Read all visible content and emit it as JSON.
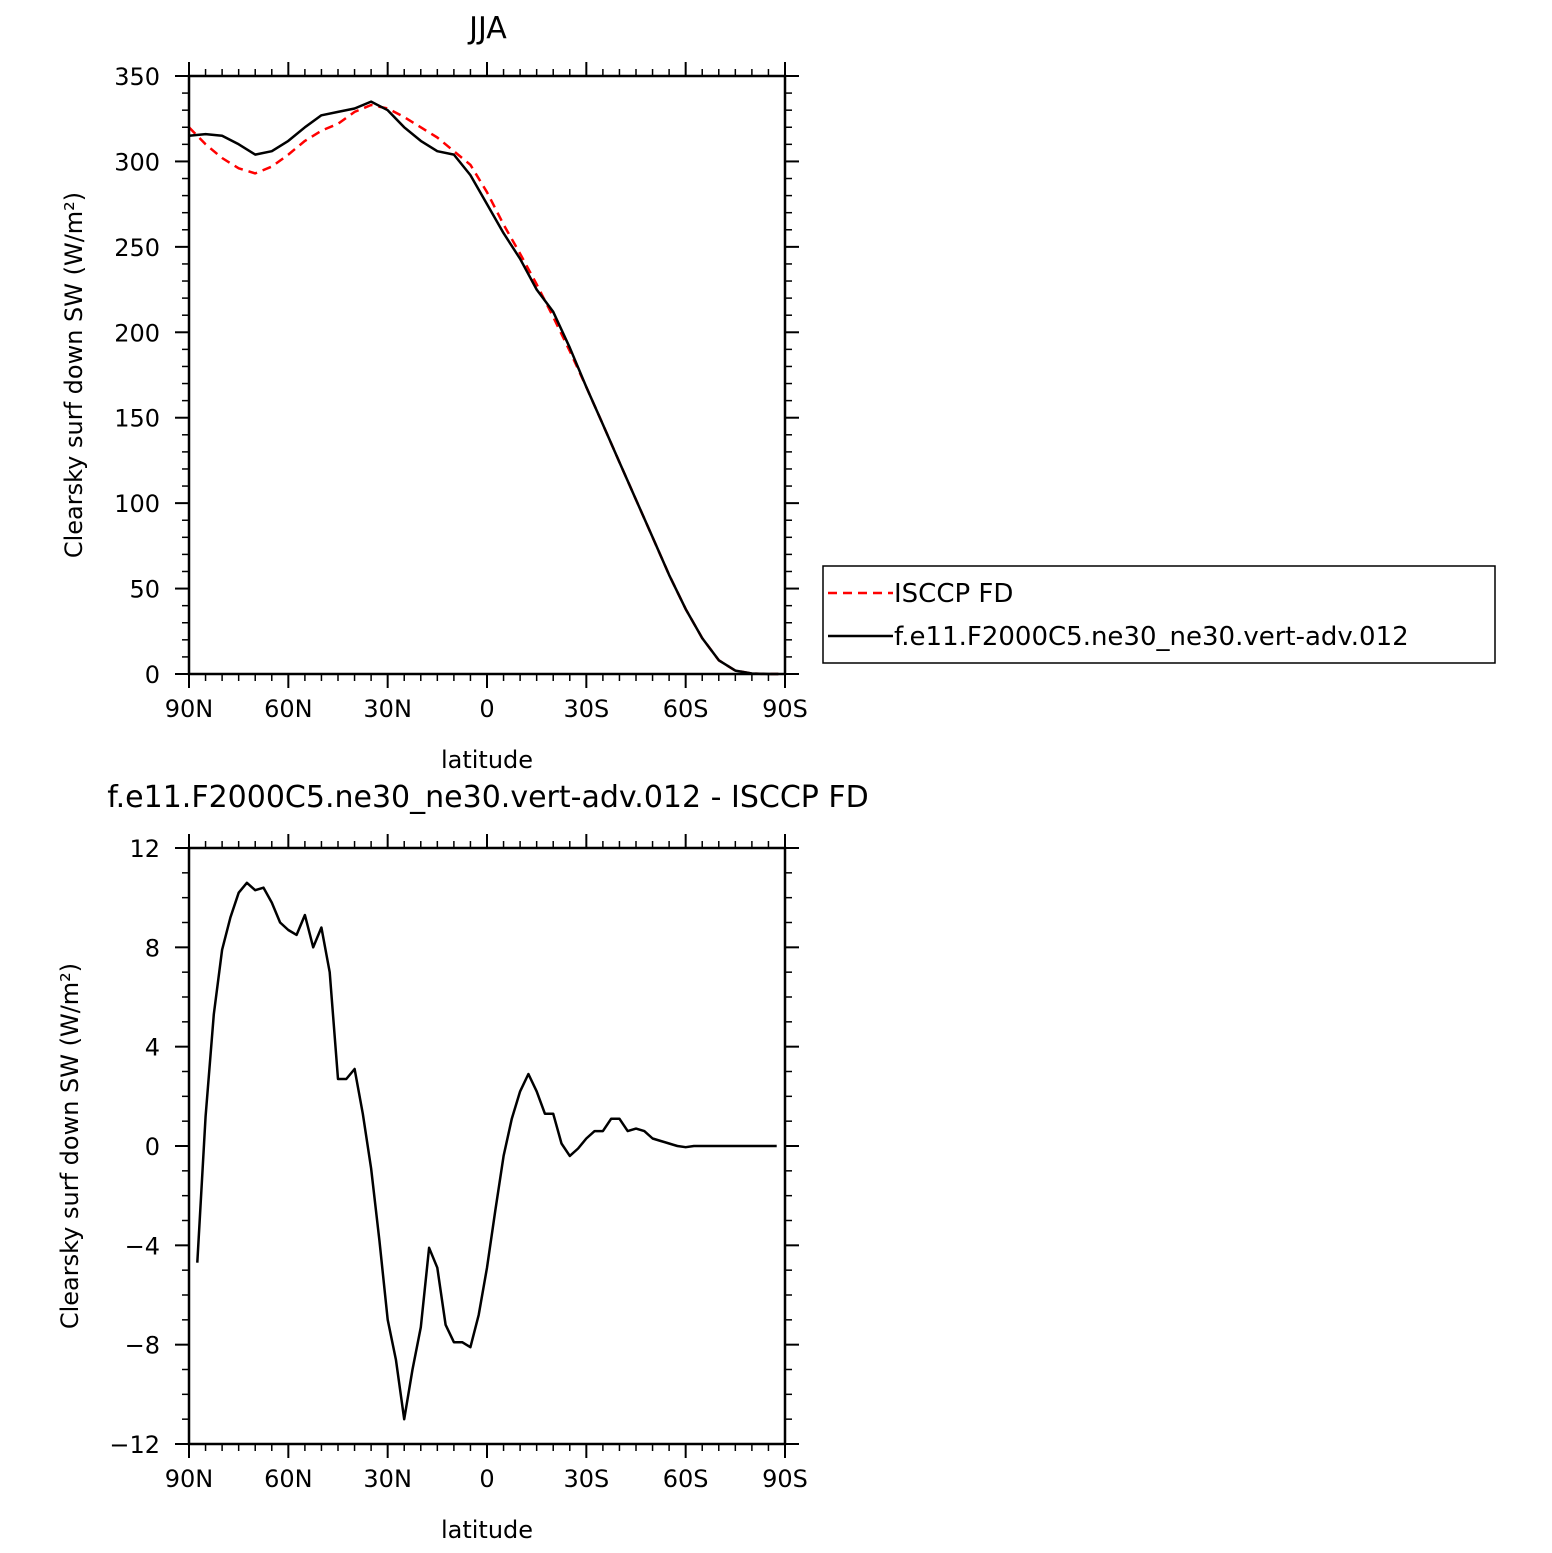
{
  "chart_data": [
    {
      "type": "line",
      "title": "JJA",
      "xlabel": "latitude",
      "ylabel": "Clearsky surf down SW (W/m²)",
      "xlim": [
        90,
        -90
      ],
      "ylim": [
        0,
        350
      ],
      "xticks": [
        90,
        60,
        30,
        0,
        -30,
        -60,
        -90
      ],
      "xtick_labels": [
        "90N",
        "60N",
        "30N",
        "0",
        "30S",
        "60S",
        "90S"
      ],
      "yticks": [
        0,
        50,
        100,
        150,
        200,
        250,
        300,
        350
      ],
      "ytick_labels": [
        "0",
        "50",
        "100",
        "150",
        "200",
        "250",
        "300",
        "350"
      ],
      "legend_position": "right",
      "series": [
        {
          "name": "ISCCP FD",
          "color": "#ff0000",
          "dash": "dashed",
          "x": [
            90,
            85,
            80,
            75,
            70,
            65,
            60,
            55,
            50,
            45,
            40,
            35,
            30,
            25,
            20,
            15,
            10,
            5,
            0,
            -5,
            -10,
            -15,
            -20,
            -25,
            -30,
            -35,
            -40,
            -45,
            -50,
            -55,
            -60,
            -65,
            -70,
            -75,
            -80,
            -85,
            -88
          ],
          "y": [
            320,
            310,
            302,
            296,
            293,
            297,
            304,
            312,
            318,
            322,
            329,
            333,
            331,
            326,
            320,
            314,
            306,
            298,
            282,
            263,
            246,
            228,
            209,
            189,
            168,
            146,
            124,
            102,
            80,
            58,
            38,
            21,
            8,
            2,
            0.3,
            0,
            0
          ]
        },
        {
          "name": "f.e11.F2000C5.ne30_ne30.vert-adv.012",
          "color": "#000000",
          "dash": "solid",
          "x": [
            90,
            85,
            80,
            75,
            70,
            65,
            60,
            55,
            50,
            45,
            40,
            35,
            30,
            25,
            20,
            15,
            10,
            5,
            0,
            -5,
            -10,
            -15,
            -20,
            -25,
            -30,
            -35,
            -40,
            -45,
            -50,
            -55,
            -60,
            -65,
            -70,
            -75,
            -80,
            -85,
            -88
          ],
          "y": [
            315,
            316,
            315,
            310,
            304,
            306,
            312,
            320,
            327,
            329,
            331,
            335,
            330,
            320,
            312,
            306,
            304,
            292,
            275,
            258,
            243,
            225,
            212,
            191,
            168,
            146,
            124,
            102,
            80,
            58,
            38,
            21,
            8,
            2,
            0.3,
            0,
            0
          ]
        }
      ]
    },
    {
      "type": "line",
      "title": "f.e11.F2000C5.ne30_ne30.vert-adv.012 - ISCCP FD",
      "xlabel": "latitude",
      "ylabel": "Clearsky surf down SW (W/m²)",
      "xlim": [
        90,
        -90
      ],
      "ylim": [
        -12,
        12
      ],
      "xticks": [
        90,
        60,
        30,
        0,
        -30,
        -60,
        -90
      ],
      "xtick_labels": [
        "90N",
        "60N",
        "30N",
        "0",
        "30S",
        "60S",
        "90S"
      ],
      "yticks": [
        -12,
        -8,
        -4,
        0,
        4,
        8,
        12
      ],
      "ytick_labels": [
        "−12",
        "−8",
        "−4",
        "0",
        "4",
        "8",
        "12"
      ],
      "series": [
        {
          "color": "#000000",
          "dash": "solid",
          "x": [
            87.5,
            85,
            82.5,
            80,
            77.5,
            75,
            72.5,
            70,
            67.5,
            65,
            62.5,
            60,
            57.5,
            55,
            52.5,
            50,
            47.5,
            45,
            42.5,
            40,
            37.5,
            35,
            32.5,
            30,
            27.5,
            25,
            22.5,
            20,
            17.5,
            15,
            12.5,
            10,
            7.5,
            5,
            2.5,
            0,
            -2.5,
            -5,
            -7.5,
            -10,
            -12.5,
            -15,
            -17.5,
            -20,
            -22.5,
            -25,
            -27.5,
            -30,
            -32.5,
            -35,
            -37.5,
            -40,
            -42.5,
            -45,
            -47.5,
            -50,
            -52.5,
            -55,
            -57.5,
            -60,
            -62.5,
            -65,
            -67.5,
            -70,
            -72.5,
            -75,
            -77.5,
            -80,
            -82.5,
            -85,
            -87.5
          ],
          "y": [
            -4.7,
            1.2,
            5.3,
            7.9,
            9.2,
            10.2,
            10.6,
            10.3,
            10.4,
            9.8,
            9.0,
            8.7,
            8.5,
            9.3,
            8.0,
            8.8,
            7.0,
            2.7,
            2.7,
            3.1,
            1.3,
            -0.9,
            -3.8,
            -7.0,
            -8.6,
            -11.0,
            -9.0,
            -7.3,
            -4.1,
            -4.9,
            -7.2,
            -7.9,
            -7.9,
            -8.1,
            -6.8,
            -4.9,
            -2.6,
            -0.4,
            1.1,
            2.2,
            2.9,
            2.2,
            1.3,
            1.3,
            0.1,
            -0.4,
            -0.1,
            0.3,
            0.6,
            0.6,
            1.1,
            1.1,
            0.6,
            0.7,
            0.6,
            0.3,
            0.2,
            0.1,
            0.0,
            -0.05,
            0.0,
            0.0,
            0.0,
            0.0,
            0.0,
            0.0,
            0.0,
            0.0,
            0.0,
            0.0,
            0.0
          ]
        }
      ]
    }
  ]
}
